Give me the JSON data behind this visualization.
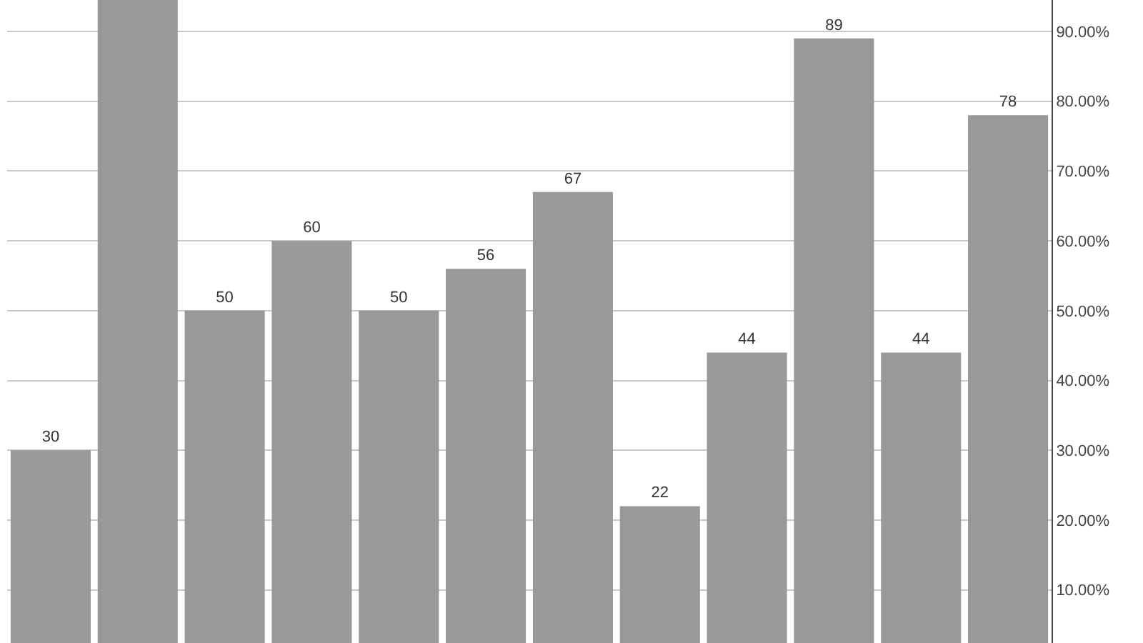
{
  "chart_data": {
    "type": "bar",
    "categories": [
      null,
      null,
      null,
      null,
      null,
      null,
      null,
      null,
      null,
      null,
      null,
      null
    ],
    "values": [
      30,
      94.5,
      50,
      60,
      50,
      56,
      67,
      22,
      44,
      89,
      44,
      78
    ],
    "value_labels": [
      "30",
      null,
      "50",
      "60",
      "50",
      "56",
      "67",
      "22",
      "44",
      "89",
      "44",
      "78"
    ],
    "color": "#999999",
    "ylim": [
      2.4,
      94.5
    ],
    "yticks": [
      {
        "value": 10,
        "label": "10.00%"
      },
      {
        "value": 20,
        "label": "20.00%"
      },
      {
        "value": 30,
        "label": "30.00%"
      },
      {
        "value": 40,
        "label": "40.00%"
      },
      {
        "value": 50,
        "label": "50.00%"
      },
      {
        "value": 60,
        "label": "60.00%"
      },
      {
        "value": 70,
        "label": "70.00%"
      },
      {
        "value": 80,
        "label": "80.00%"
      },
      {
        "value": 90,
        "label": "90.00%"
      }
    ],
    "grid": "y",
    "tick_labels": "y",
    "legend": false
  }
}
